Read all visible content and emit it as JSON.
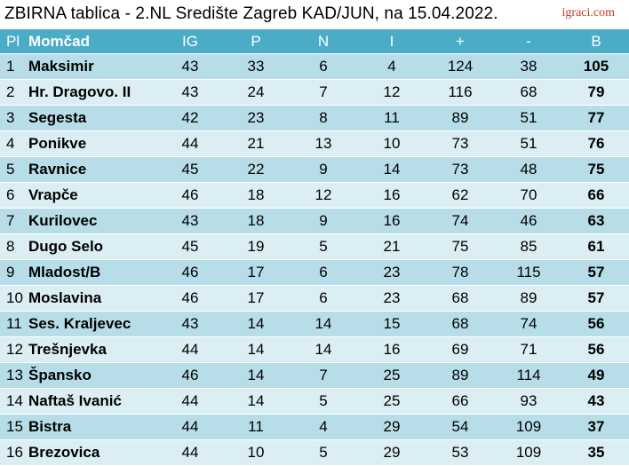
{
  "title": "ZBIRNA tablica - 2.NL Središte Zagreb KAD/JUN, na 15.04.2022.",
  "brand": "igraci.com",
  "columns": [
    "Pl",
    "Momčad",
    "IG",
    "P",
    "N",
    "I",
    "+",
    "-",
    "B"
  ],
  "rows": [
    [
      "1",
      "Maksimir",
      "43",
      "33",
      "6",
      "4",
      "124",
      "38",
      "105"
    ],
    [
      "2",
      "Hr. Dragovo. II",
      "43",
      "24",
      "7",
      "12",
      "116",
      "68",
      "79"
    ],
    [
      "3",
      "Segesta",
      "42",
      "23",
      "8",
      "11",
      "89",
      "51",
      "77"
    ],
    [
      "4",
      "Ponikve",
      "44",
      "21",
      "13",
      "10",
      "73",
      "51",
      "76"
    ],
    [
      "5",
      "Ravnice",
      "45",
      "22",
      "9",
      "14",
      "73",
      "48",
      "75"
    ],
    [
      "6",
      "Vrapče",
      "46",
      "18",
      "12",
      "16",
      "62",
      "70",
      "66"
    ],
    [
      "7",
      "Kurilovec",
      "43",
      "18",
      "9",
      "16",
      "74",
      "46",
      "63"
    ],
    [
      "8",
      "Dugo Selo",
      "45",
      "19",
      "5",
      "21",
      "75",
      "85",
      "61"
    ],
    [
      "9",
      "Mladost/B",
      "46",
      "17",
      "6",
      "23",
      "78",
      "115",
      "57"
    ],
    [
      "10",
      "Moslavina",
      "46",
      "17",
      "6",
      "23",
      "68",
      "89",
      "57"
    ],
    [
      "11",
      "Ses. Kraljevec",
      "43",
      "14",
      "14",
      "15",
      "68",
      "74",
      "56"
    ],
    [
      "12",
      "Trešnjevka",
      "44",
      "14",
      "14",
      "16",
      "69",
      "71",
      "56"
    ],
    [
      "13",
      "Špansko",
      "46",
      "14",
      "7",
      "25",
      "89",
      "114",
      "49"
    ],
    [
      "14",
      "Naftaš Ivanić",
      "44",
      "14",
      "5",
      "25",
      "66",
      "93",
      "43"
    ],
    [
      "15",
      "Bistra",
      "44",
      "11",
      "4",
      "29",
      "54",
      "109",
      "37"
    ],
    [
      "16",
      "Brezovica",
      "44",
      "10",
      "5",
      "29",
      "53",
      "109",
      "35"
    ]
  ],
  "colors": {
    "header_bg": "#4bacc6",
    "row_odd": "#b7dee8",
    "row_even": "#dbeef3",
    "brand": "#c0392b"
  }
}
